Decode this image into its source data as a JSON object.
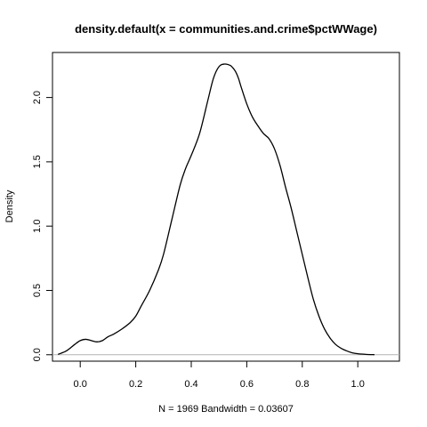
{
  "chart_data": {
    "type": "line",
    "title": "density.default(x = communities.and.crime$pctWWage)",
    "xlabel": "N = 1969   Bandwidth = 0.03607",
    "ylabel": "Density",
    "xlim": [
      -0.1,
      1.15
    ],
    "ylim": [
      -0.05,
      2.35
    ],
    "x_ticks": [
      0.0,
      0.2,
      0.4,
      0.6,
      0.8,
      1.0
    ],
    "x_tick_labels": [
      "0.0",
      "0.2",
      "0.4",
      "0.6",
      "0.8",
      "1.0"
    ],
    "y_ticks": [
      0.0,
      0.5,
      1.0,
      1.5,
      2.0
    ],
    "y_tick_labels": [
      "0.0",
      "0.5",
      "1.0",
      "1.5",
      "2.0"
    ],
    "baseline": 0,
    "line_color": "#000000",
    "baseline_color": "#b3b3b3",
    "series": [
      {
        "x": [
          -0.08,
          -0.05,
          -0.02,
          0.0,
          0.02,
          0.04,
          0.06,
          0.08,
          0.1,
          0.12,
          0.15,
          0.18,
          0.2,
          0.22,
          0.25,
          0.28,
          0.3,
          0.33,
          0.36,
          0.38,
          0.4,
          0.43,
          0.46,
          0.48,
          0.5,
          0.52,
          0.54,
          0.55,
          0.56,
          0.57,
          0.58,
          0.6,
          0.62,
          0.64,
          0.66,
          0.68,
          0.7,
          0.72,
          0.74,
          0.76,
          0.78,
          0.8,
          0.82,
          0.84,
          0.86,
          0.88,
          0.9,
          0.92,
          0.94,
          0.96,
          0.98,
          1.0,
          1.03,
          1.06
        ],
        "y": [
          0.003,
          0.03,
          0.08,
          0.11,
          0.12,
          0.11,
          0.1,
          0.11,
          0.14,
          0.16,
          0.2,
          0.25,
          0.3,
          0.38,
          0.5,
          0.65,
          0.78,
          1.05,
          1.32,
          1.45,
          1.55,
          1.72,
          1.98,
          2.15,
          2.24,
          2.26,
          2.25,
          2.23,
          2.2,
          2.15,
          2.08,
          1.95,
          1.85,
          1.78,
          1.72,
          1.68,
          1.6,
          1.47,
          1.3,
          1.14,
          0.96,
          0.78,
          0.6,
          0.43,
          0.3,
          0.2,
          0.13,
          0.08,
          0.05,
          0.03,
          0.015,
          0.008,
          0.003,
          0.0005
        ]
      }
    ],
    "grid": false,
    "legend": "none"
  }
}
